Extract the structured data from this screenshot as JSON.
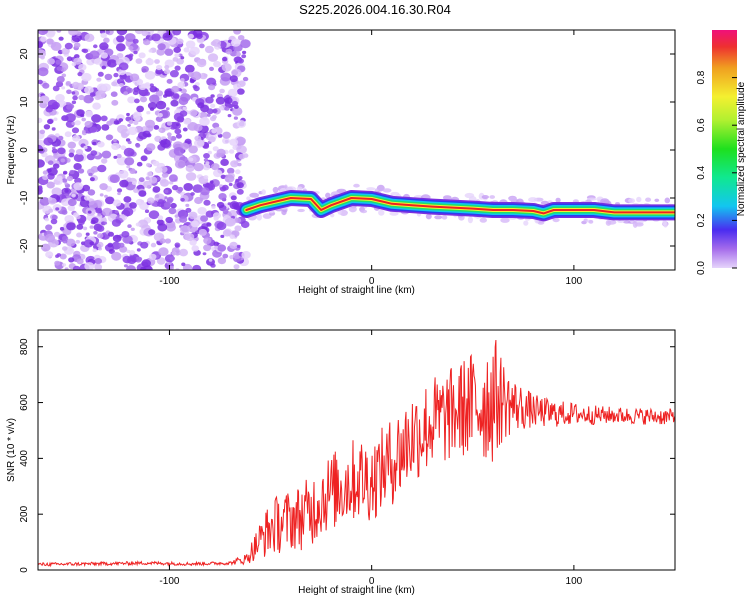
{
  "title": "S225.2026.004.16.30.R04",
  "chart_data": [
    {
      "type": "heatmap",
      "name": "spectrogram",
      "xlabel": "Height of straight line (km)",
      "ylabel": "Frequency (Hz)",
      "xlim": [
        -165,
        150
      ],
      "ylim": [
        -25,
        25
      ],
      "xticks": [
        -100,
        0,
        100
      ],
      "xtick_labels": [
        "-100",
        "0",
        "100"
      ],
      "yticks": [
        -20,
        -10,
        0,
        10,
        20
      ],
      "ytick_labels": [
        "-20",
        "-10",
        "0",
        "10",
        "20"
      ],
      "noise_region_x": [
        -165,
        -62
      ],
      "track": {
        "x": [
          -62,
          -55,
          -45,
          -40,
          -30,
          -25,
          -20,
          -10,
          0,
          10,
          20,
          30,
          40,
          50,
          60,
          70,
          80,
          85,
          90,
          100,
          110,
          120,
          130,
          140,
          150
        ],
        "freq": [
          -12.5,
          -11.5,
          -10.5,
          -10,
          -10.2,
          -12.5,
          -11.5,
          -10,
          -10.2,
          -11.2,
          -11.5,
          -11.8,
          -12,
          -12.2,
          -12.5,
          -12.5,
          -12.7,
          -13.2,
          -12.5,
          -12.5,
          -12.5,
          -13,
          -13,
          -13,
          -13
        ]
      },
      "colorbar": {
        "label": "Normalized spectral amplitude",
        "range": [
          0,
          1
        ],
        "ticks": [
          0.0,
          0.2,
          0.4,
          0.6,
          0.8
        ],
        "tick_labels": [
          "0.0",
          "0.2",
          "0.4",
          "0.6",
          "0.8"
        ]
      }
    },
    {
      "type": "line",
      "name": "snr",
      "xlabel": "Height of straight line (km)",
      "ylabel": "SNR (10 * v/v)",
      "xlim": [
        -165,
        150
      ],
      "ylim": [
        0,
        860
      ],
      "xticks": [
        -100,
        0,
        100
      ],
      "xtick_labels": [
        "-100",
        "0",
        "100"
      ],
      "yticks": [
        0,
        200,
        400,
        600,
        800
      ],
      "ytick_labels": [
        "0",
        "200",
        "400",
        "600",
        "800"
      ],
      "color": "#ee2222",
      "series": [
        {
          "name": "SNR",
          "x": [
            -165,
            -140,
            -110,
            -90,
            -70,
            -62,
            -55,
            -50,
            -45,
            -40,
            -35,
            -30,
            -25,
            -20,
            -15,
            -10,
            -5,
            0,
            5,
            10,
            15,
            20,
            25,
            30,
            35,
            40,
            45,
            50,
            55,
            60,
            65,
            70,
            80,
            90,
            100,
            110,
            120,
            130,
            140,
            150
          ],
          "mean": [
            20,
            22,
            25,
            22,
            25,
            40,
            110,
            150,
            170,
            180,
            190,
            210,
            260,
            280,
            300,
            320,
            330,
            320,
            360,
            390,
            430,
            480,
            500,
            530,
            540,
            560,
            580,
            590,
            600,
            620,
            610,
            590,
            570,
            560,
            560,
            555,
            555,
            552,
            550,
            548
          ],
          "amp": [
            6,
            6,
            6,
            6,
            6,
            20,
            70,
            100,
            110,
            110,
            120,
            130,
            140,
            140,
            150,
            150,
            150,
            150,
            150,
            160,
            170,
            170,
            170,
            170,
            170,
            170,
            180,
            200,
            220,
            240,
            150,
            100,
            60,
            50,
            40,
            35,
            30,
            30,
            30,
            30
          ]
        }
      ]
    }
  ]
}
